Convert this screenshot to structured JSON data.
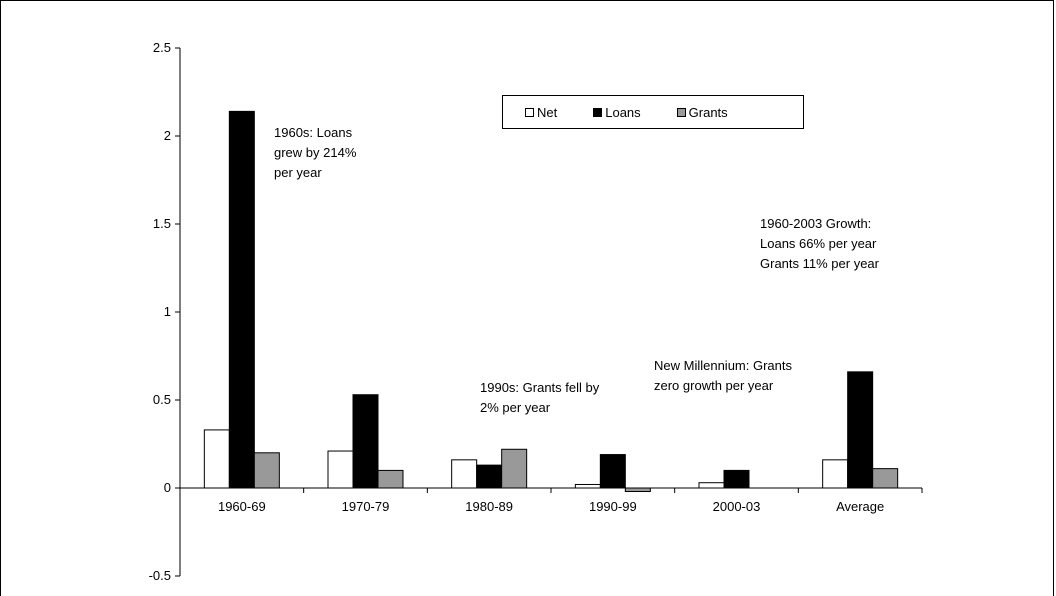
{
  "chart_data": {
    "type": "bar",
    "categories": [
      "1960-69",
      "1970-79",
      "1980-89",
      "1990-99",
      "2000-03",
      "Average"
    ],
    "series": [
      {
        "name": "Net",
        "color": "#ffffff",
        "values": [
          0.33,
          0.21,
          0.16,
          0.02,
          0.03,
          0.16
        ]
      },
      {
        "name": "Loans",
        "color": "#000000",
        "values": [
          2.14,
          0.53,
          0.13,
          0.19,
          0.1,
          0.66
        ]
      },
      {
        "name": "Grants",
        "color": "#999999",
        "values": [
          0.2,
          0.1,
          0.22,
          -0.02,
          0,
          0.11
        ]
      }
    ],
    "ylim": [
      -0.5,
      2.5
    ],
    "yticks": [
      "2.5",
      "2",
      "1.5",
      "1",
      "0.5",
      "0",
      "-0.5"
    ],
    "grid": false,
    "legend_position": "top-center",
    "annotations": [
      {
        "lines": [
          "1960s: Loans",
          "grew by 214%",
          "per year"
        ]
      },
      {
        "lines": [
          "1990s: Grants fell by",
          "2% per year"
        ]
      },
      {
        "lines": [
          "New Millennium: Grants",
          "zero growth per year"
        ]
      },
      {
        "lines": [
          "1960-2003 Growth:",
          "Loans 66% per year",
          "Grants 11% per year"
        ]
      }
    ]
  }
}
